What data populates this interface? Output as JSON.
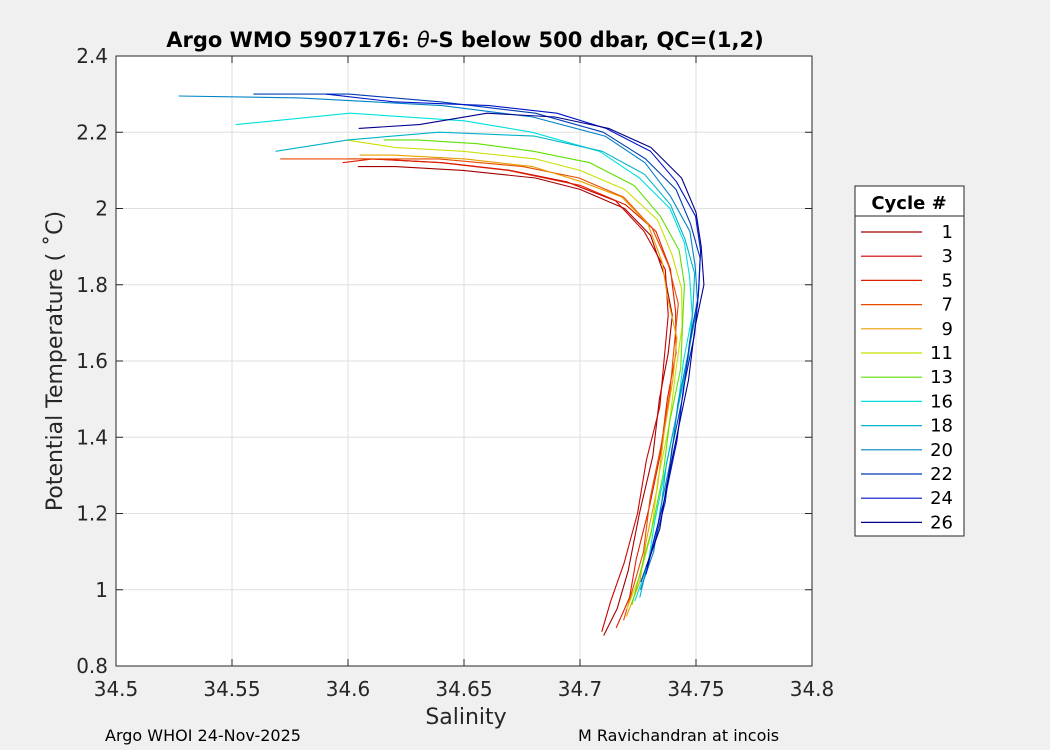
{
  "chart_data": {
    "type": "line",
    "title_prefix": "Argo WMO 5907176: ",
    "title_theta": "θ",
    "title_suffix": "-S below 500 dbar,  QC=(1,2)",
    "xlabel": "Salinity",
    "ylabel": "Potential Temperature ( ˚C)",
    "xlim": [
      34.5,
      34.8
    ],
    "ylim": [
      0.8,
      2.4
    ],
    "xticks": [
      "34.5",
      "34.55",
      "34.6",
      "34.65",
      "34.7",
      "34.75",
      "34.8"
    ],
    "yticks": [
      "0.8",
      "1",
      "1.2",
      "1.4",
      "1.6",
      "1.8",
      "2",
      "2.2",
      "2.4"
    ],
    "grid": true,
    "legend": {
      "title": "Cycle #",
      "placement": "right",
      "entries": [
        "1",
        "3",
        "5",
        "7",
        "9",
        "11",
        "13",
        "16",
        "18",
        "20",
        "22",
        "24",
        "26"
      ],
      "colors": [
        "#a30000",
        "#cc0000",
        "#e01e00",
        "#e84a00",
        "#e8a000",
        "#c8e000",
        "#5ee000",
        "#00e0e0",
        "#00b4c8",
        "#0082c8",
        "#003cb4",
        "#0014c8",
        "#00008c"
      ]
    },
    "series": [
      {
        "name": "1",
        "color": "#a30000",
        "points": [
          [
            34.711,
            0.88
          ],
          [
            34.716,
            0.95
          ],
          [
            34.72,
            1.05
          ],
          [
            34.726,
            1.2
          ],
          [
            34.731,
            1.35
          ],
          [
            34.735,
            1.5
          ],
          [
            34.738,
            1.62
          ],
          [
            34.739,
            1.72
          ],
          [
            34.737,
            1.82
          ],
          [
            34.73,
            1.93
          ],
          [
            34.72,
            2.0
          ],
          [
            34.7,
            2.05
          ],
          [
            34.68,
            2.08
          ],
          [
            34.65,
            2.1
          ],
          [
            34.62,
            2.11
          ],
          [
            34.605,
            2.11
          ]
        ]
      },
      {
        "name": "3",
        "color": "#cc0000",
        "points": [
          [
            34.709,
            0.89
          ],
          [
            34.714,
            0.97
          ],
          [
            34.719,
            1.07
          ],
          [
            34.724,
            1.2
          ],
          [
            34.729,
            1.34
          ],
          [
            34.734,
            1.48
          ],
          [
            34.737,
            1.6
          ],
          [
            34.738,
            1.72
          ],
          [
            34.736,
            1.84
          ],
          [
            34.728,
            1.94
          ],
          [
            34.715,
            2.02
          ],
          [
            34.695,
            2.07
          ],
          [
            34.67,
            2.1
          ],
          [
            34.64,
            2.12
          ],
          [
            34.61,
            2.13
          ],
          [
            34.6,
            2.13
          ]
        ]
      },
      {
        "name": "5",
        "color": "#e01e00",
        "points": [
          [
            34.716,
            0.9
          ],
          [
            34.721,
            0.98
          ],
          [
            34.725,
            1.08
          ],
          [
            34.73,
            1.22
          ],
          [
            34.734,
            1.36
          ],
          [
            34.738,
            1.5
          ],
          [
            34.741,
            1.62
          ],
          [
            34.742,
            1.73
          ],
          [
            34.739,
            1.84
          ],
          [
            34.732,
            1.94
          ],
          [
            34.72,
            2.01
          ],
          [
            34.7,
            2.06
          ],
          [
            34.67,
            2.1
          ],
          [
            34.64,
            2.12
          ],
          [
            34.61,
            2.13
          ],
          [
            34.598,
            2.12
          ]
        ]
      },
      {
        "name": "7",
        "color": "#e84a00",
        "points": [
          [
            34.718,
            0.92
          ],
          [
            34.723,
            1.0
          ],
          [
            34.727,
            1.1
          ],
          [
            34.731,
            1.24
          ],
          [
            34.735,
            1.38
          ],
          [
            34.738,
            1.52
          ],
          [
            34.741,
            1.64
          ],
          [
            34.742,
            1.75
          ],
          [
            34.739,
            1.85
          ],
          [
            34.731,
            1.95
          ],
          [
            34.718,
            2.03
          ],
          [
            34.7,
            2.08
          ],
          [
            34.675,
            2.11
          ],
          [
            34.64,
            2.13
          ],
          [
            34.6,
            2.13
          ],
          [
            34.57,
            2.13
          ]
        ]
      },
      {
        "name": "9",
        "color": "#e8a000",
        "points": [
          [
            34.72,
            0.93
          ],
          [
            34.725,
            1.02
          ],
          [
            34.729,
            1.13
          ],
          [
            34.733,
            1.27
          ],
          [
            34.737,
            1.41
          ],
          [
            34.74,
            1.55
          ],
          [
            34.741,
            1.66
          ],
          [
            34.738,
            1.77
          ],
          [
            34.735,
            1.86
          ],
          [
            34.73,
            1.96
          ],
          [
            34.718,
            2.03
          ],
          [
            34.7,
            2.07
          ],
          [
            34.68,
            2.11
          ],
          [
            34.65,
            2.13
          ],
          [
            34.62,
            2.14
          ],
          [
            34.605,
            2.14
          ]
        ]
      },
      {
        "name": "11",
        "color": "#c8e000",
        "points": [
          [
            34.721,
            0.95
          ],
          [
            34.726,
            1.04
          ],
          [
            34.73,
            1.15
          ],
          [
            34.734,
            1.29
          ],
          [
            34.738,
            1.43
          ],
          [
            34.742,
            1.57
          ],
          [
            34.744,
            1.69
          ],
          [
            34.743,
            1.79
          ],
          [
            34.74,
            1.88
          ],
          [
            34.733,
            1.97
          ],
          [
            34.72,
            2.05
          ],
          [
            34.7,
            2.1
          ],
          [
            34.68,
            2.13
          ],
          [
            34.65,
            2.15
          ],
          [
            34.62,
            2.16
          ],
          [
            34.6,
            2.18
          ]
        ]
      },
      {
        "name": "13",
        "color": "#5ee000",
        "points": [
          [
            34.722,
            0.96
          ],
          [
            34.727,
            1.05
          ],
          [
            34.731,
            1.16
          ],
          [
            34.735,
            1.3
          ],
          [
            34.739,
            1.44
          ],
          [
            34.743,
            1.58
          ],
          [
            34.745,
            1.7
          ],
          [
            34.745,
            1.8
          ],
          [
            34.742,
            1.89
          ],
          [
            34.735,
            1.98
          ],
          [
            34.723,
            2.06
          ],
          [
            34.705,
            2.12
          ],
          [
            34.68,
            2.15
          ],
          [
            34.655,
            2.17
          ],
          [
            34.63,
            2.18
          ],
          [
            34.615,
            2.18
          ]
        ]
      },
      {
        "name": "16",
        "color": "#00e0e0",
        "points": [
          [
            34.724,
            0.97
          ],
          [
            34.729,
            1.07
          ],
          [
            34.733,
            1.18
          ],
          [
            34.737,
            1.32
          ],
          [
            34.741,
            1.46
          ],
          [
            34.745,
            1.6
          ],
          [
            34.748,
            1.72
          ],
          [
            34.748,
            1.82
          ],
          [
            34.745,
            1.91
          ],
          [
            34.738,
            2.0
          ],
          [
            34.726,
            2.08
          ],
          [
            34.708,
            2.15
          ],
          [
            34.68,
            2.2
          ],
          [
            34.65,
            2.23
          ],
          [
            34.6,
            2.25
          ],
          [
            34.552,
            2.22
          ]
        ]
      },
      {
        "name": "18",
        "color": "#00b4c8",
        "points": [
          [
            34.725,
            0.98
          ],
          [
            34.73,
            1.08
          ],
          [
            34.734,
            1.19
          ],
          [
            34.738,
            1.33
          ],
          [
            34.742,
            1.47
          ],
          [
            34.746,
            1.61
          ],
          [
            34.749,
            1.73
          ],
          [
            34.749,
            1.83
          ],
          [
            34.746,
            1.92
          ],
          [
            34.739,
            2.01
          ],
          [
            34.727,
            2.09
          ],
          [
            34.71,
            2.15
          ],
          [
            34.68,
            2.19
          ],
          [
            34.64,
            2.2
          ],
          [
            34.6,
            2.18
          ],
          [
            34.568,
            2.15
          ]
        ]
      },
      {
        "name": "20",
        "color": "#0082c8",
        "points": [
          [
            34.726,
            1.0
          ],
          [
            34.731,
            1.1
          ],
          [
            34.735,
            1.21
          ],
          [
            34.739,
            1.35
          ],
          [
            34.743,
            1.49
          ],
          [
            34.747,
            1.63
          ],
          [
            34.75,
            1.75
          ],
          [
            34.75,
            1.85
          ],
          [
            34.747,
            1.94
          ],
          [
            34.74,
            2.03
          ],
          [
            34.728,
            2.12
          ],
          [
            34.71,
            2.19
          ],
          [
            34.68,
            2.24
          ],
          [
            34.64,
            2.27
          ],
          [
            34.58,
            2.29
          ],
          [
            34.527,
            2.295
          ]
        ]
      },
      {
        "name": "22",
        "color": "#003cb4",
        "points": [
          [
            34.727,
            1.02
          ],
          [
            34.732,
            1.12
          ],
          [
            34.736,
            1.23
          ],
          [
            34.74,
            1.37
          ],
          [
            34.744,
            1.51
          ],
          [
            34.748,
            1.65
          ],
          [
            34.751,
            1.77
          ],
          [
            34.751,
            1.87
          ],
          [
            34.748,
            1.96
          ],
          [
            34.741,
            2.05
          ],
          [
            34.729,
            2.13
          ],
          [
            34.71,
            2.2
          ],
          [
            34.68,
            2.25
          ],
          [
            34.64,
            2.28
          ],
          [
            34.6,
            2.3
          ],
          [
            34.56,
            2.3
          ]
        ]
      },
      {
        "name": "24",
        "color": "#0014c8",
        "points": [
          [
            34.728,
            1.04
          ],
          [
            34.733,
            1.14
          ],
          [
            34.737,
            1.25
          ],
          [
            34.741,
            1.39
          ],
          [
            34.745,
            1.53
          ],
          [
            34.749,
            1.67
          ],
          [
            34.752,
            1.79
          ],
          [
            34.752,
            1.89
          ],
          [
            34.749,
            1.98
          ],
          [
            34.742,
            2.07
          ],
          [
            34.73,
            2.15
          ],
          [
            34.712,
            2.21
          ],
          [
            34.69,
            2.25
          ],
          [
            34.66,
            2.27
          ],
          [
            34.62,
            2.28
          ],
          [
            34.59,
            2.3
          ]
        ]
      },
      {
        "name": "26",
        "color": "#00008c",
        "points": [
          [
            34.729,
            1.06
          ],
          [
            34.734,
            1.16
          ],
          [
            34.738,
            1.27
          ],
          [
            34.742,
            1.41
          ],
          [
            34.746,
            1.55
          ],
          [
            34.75,
            1.69
          ],
          [
            34.753,
            1.8
          ],
          [
            34.753,
            1.9
          ],
          [
            34.75,
            1.99
          ],
          [
            34.743,
            2.08
          ],
          [
            34.731,
            2.16
          ],
          [
            34.712,
            2.21
          ],
          [
            34.69,
            2.24
          ],
          [
            34.66,
            2.25
          ],
          [
            34.63,
            2.22
          ],
          [
            34.605,
            2.21
          ]
        ]
      }
    ]
  },
  "footer": {
    "left": "Argo WHOI 24-Nov-2025",
    "right": "M Ravichandran at incois"
  }
}
